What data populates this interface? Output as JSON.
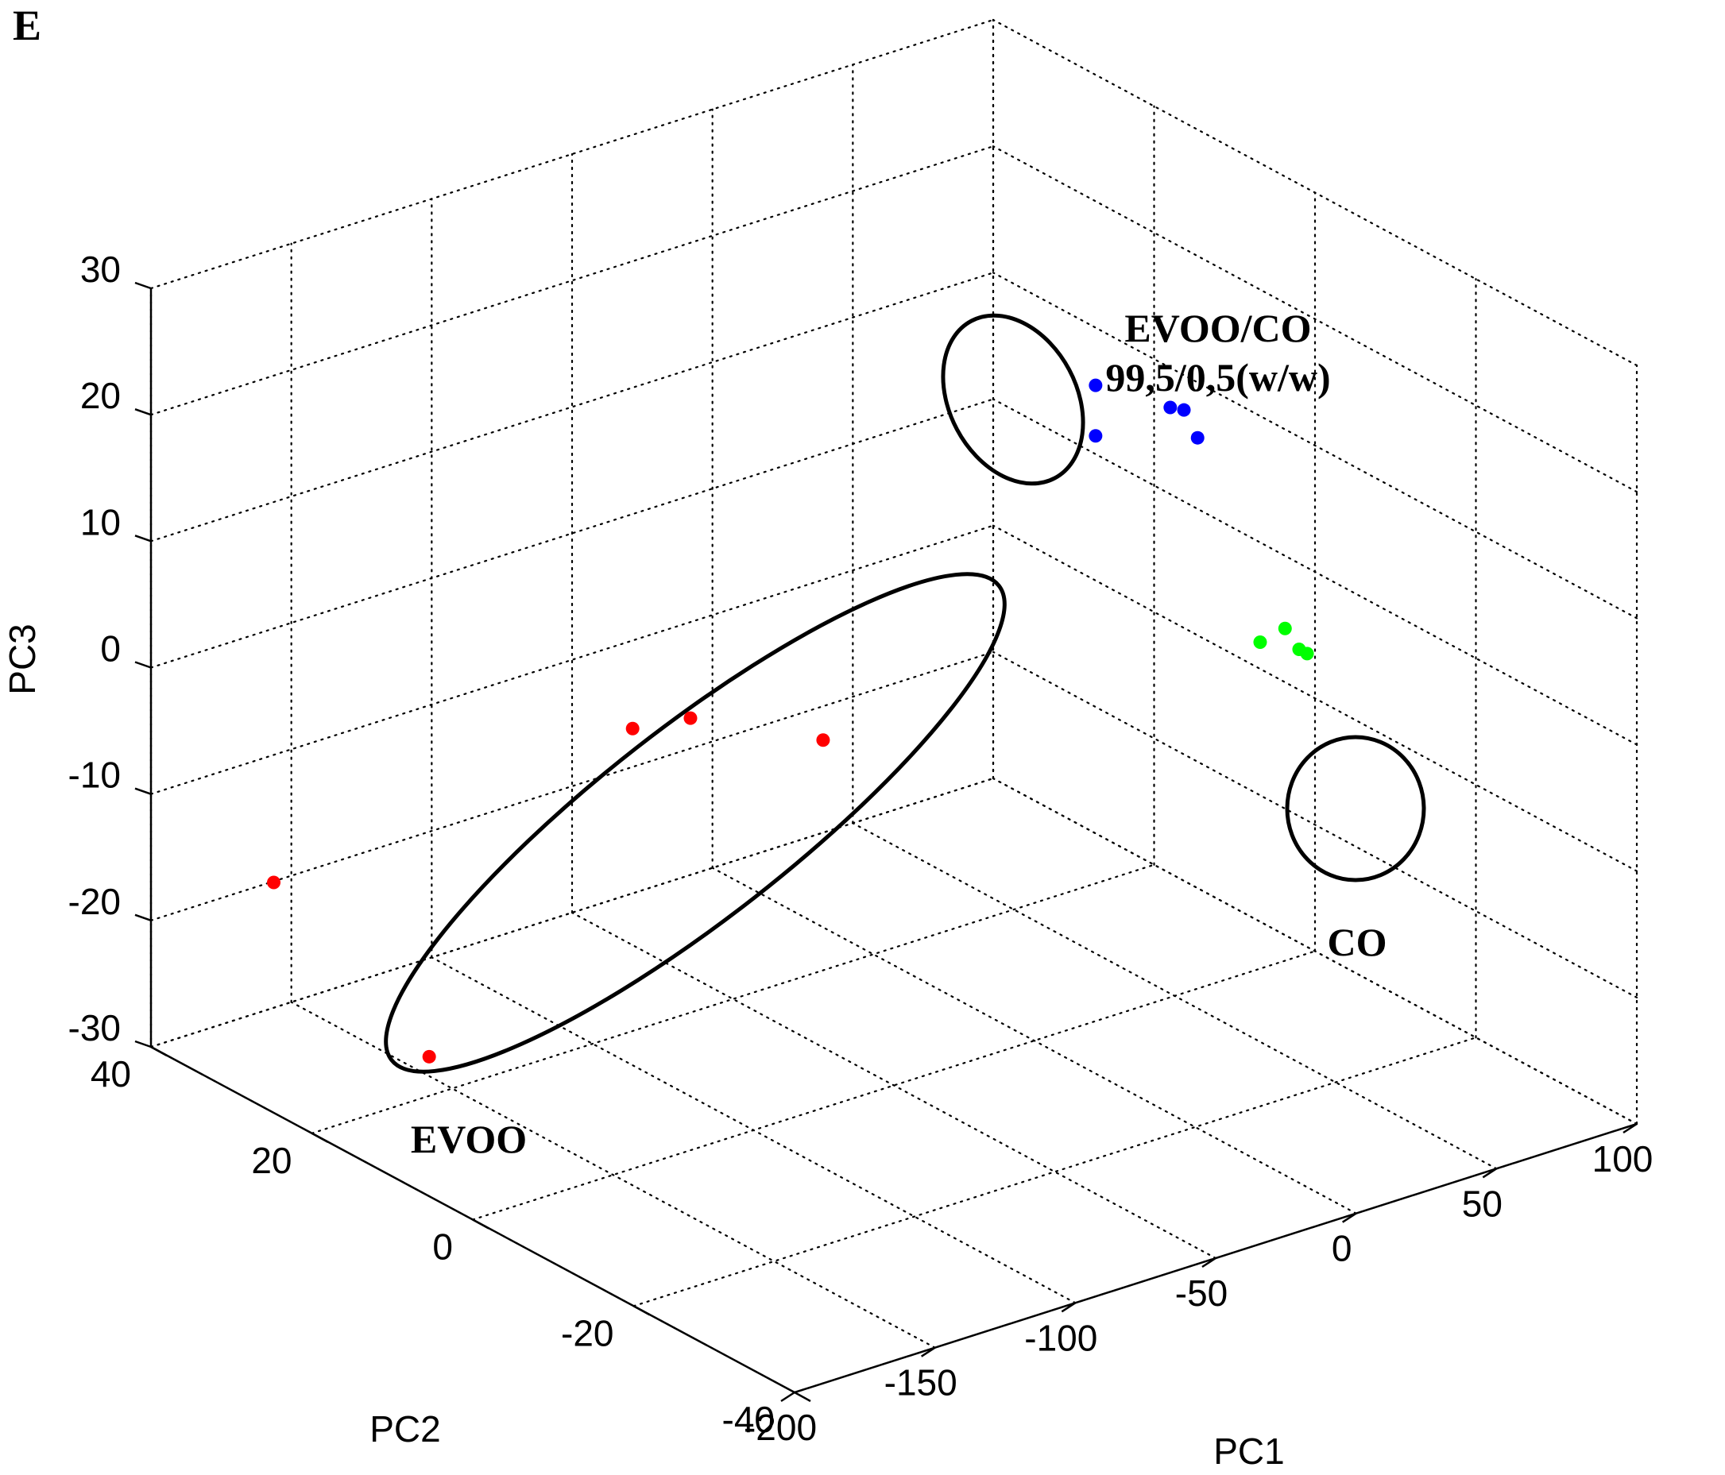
{
  "chart_data": {
    "type": "scatter",
    "panel_label": "E",
    "title": "",
    "xlabel": "PC1",
    "ylabel": "PC2",
    "zlabel": "PC3",
    "xlim": [
      -200,
      100
    ],
    "ylim": [
      -40,
      40
    ],
    "zlim": [
      -30,
      30
    ],
    "x_ticks": [
      "-200",
      "-150",
      "-100",
      "-50",
      "0",
      "50",
      "100"
    ],
    "y_ticks": [
      "-40",
      "-20",
      "0",
      "20",
      "40"
    ],
    "z_ticks": [
      "-30",
      "-20",
      "-10",
      "0",
      "10",
      "20",
      "30"
    ],
    "grid": true,
    "series": [
      {
        "name": "EVOO",
        "color": "#ff0000",
        "points": [
          {
            "x": -123,
            "y": 7,
            "z": 1
          },
          {
            "x": -111,
            "y": 4,
            "z": 2
          },
          {
            "x": -101,
            "y": -9,
            "z": 4
          },
          {
            "x": -162,
            "y": 38,
            "z": -19
          },
          {
            "x": -184,
            "y": 11,
            "z": -22
          }
        ]
      },
      {
        "name": "EVOO/CO\n99,5/0,5(w/w)",
        "color": "#0000ff",
        "points": [
          {
            "x": -24,
            "y": -16,
            "z": 29
          },
          {
            "x": -24,
            "y": -16,
            "z": 25
          },
          {
            "x": -6,
            "y": -19,
            "z": 27
          },
          {
            "x": -4,
            "y": -20,
            "z": 27
          },
          {
            "x": -2,
            "y": -21,
            "z": 25
          }
        ]
      },
      {
        "name": "CO",
        "color": "#00ff00",
        "points": [
          {
            "x": 75,
            "y": -5,
            "z": -1
          },
          {
            "x": 69,
            "y": -4,
            "z": -2
          },
          {
            "x": 80,
            "y": -5,
            "z": -3
          },
          {
            "x": 80,
            "y": -6,
            "z": -3
          }
        ]
      }
    ],
    "annotations": {
      "evoo": "EVOO",
      "mix_line1": "EVOO/CO",
      "mix_line2": "99,5/0,5(w/w)",
      "co": "CO"
    }
  }
}
